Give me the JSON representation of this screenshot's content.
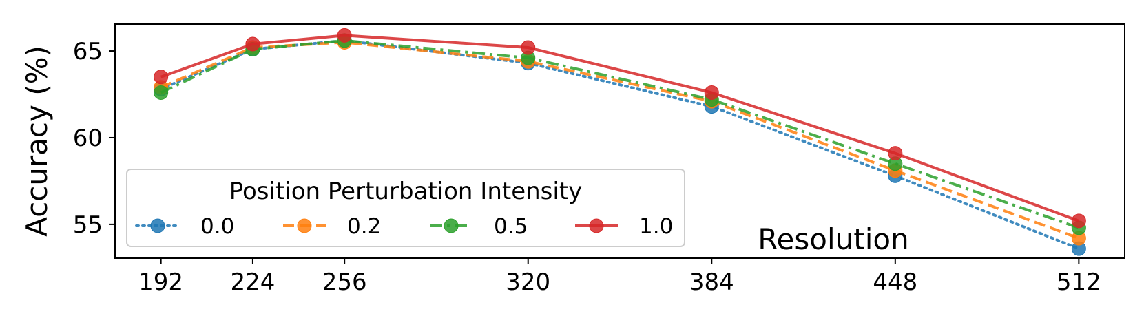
{
  "chart_data": {
    "type": "line",
    "title": "",
    "xlabel": "Resolution",
    "ylabel": "Accuracy (%)",
    "x": [
      192,
      224,
      256,
      320,
      384,
      448,
      512
    ],
    "x_tick_labels": [
      "192",
      "224",
      "256",
      "320",
      "384",
      "448",
      "512"
    ],
    "xlim": [
      176.0,
      528.0
    ],
    "ylim": [
      53.05,
      66.55
    ],
    "y_ticks": [
      55,
      60,
      65
    ],
    "y_tick_labels": [
      "55",
      "60",
      "65"
    ],
    "grid": false,
    "legend": {
      "title": "Position Perturbation Intensity",
      "placement": "lower-left"
    },
    "series": [
      {
        "name": "0.0",
        "color": "#1f77b4",
        "line_style": "dotted",
        "values": [
          62.8,
          65.1,
          65.6,
          64.3,
          61.8,
          57.8,
          53.6
        ]
      },
      {
        "name": "0.2",
        "color": "#ff7f0e",
        "line_style": "dashed",
        "values": [
          62.9,
          65.2,
          65.5,
          64.4,
          62.1,
          58.1,
          54.2
        ]
      },
      {
        "name": "0.5",
        "color": "#2ca02c",
        "line_style": "dashdot",
        "values": [
          62.6,
          65.1,
          65.6,
          64.6,
          62.2,
          58.5,
          54.8
        ]
      },
      {
        "name": "1.0",
        "color": "#d62728",
        "line_style": "solid",
        "values": [
          63.5,
          65.4,
          65.9,
          65.2,
          62.6,
          59.1,
          55.2
        ]
      }
    ]
  }
}
